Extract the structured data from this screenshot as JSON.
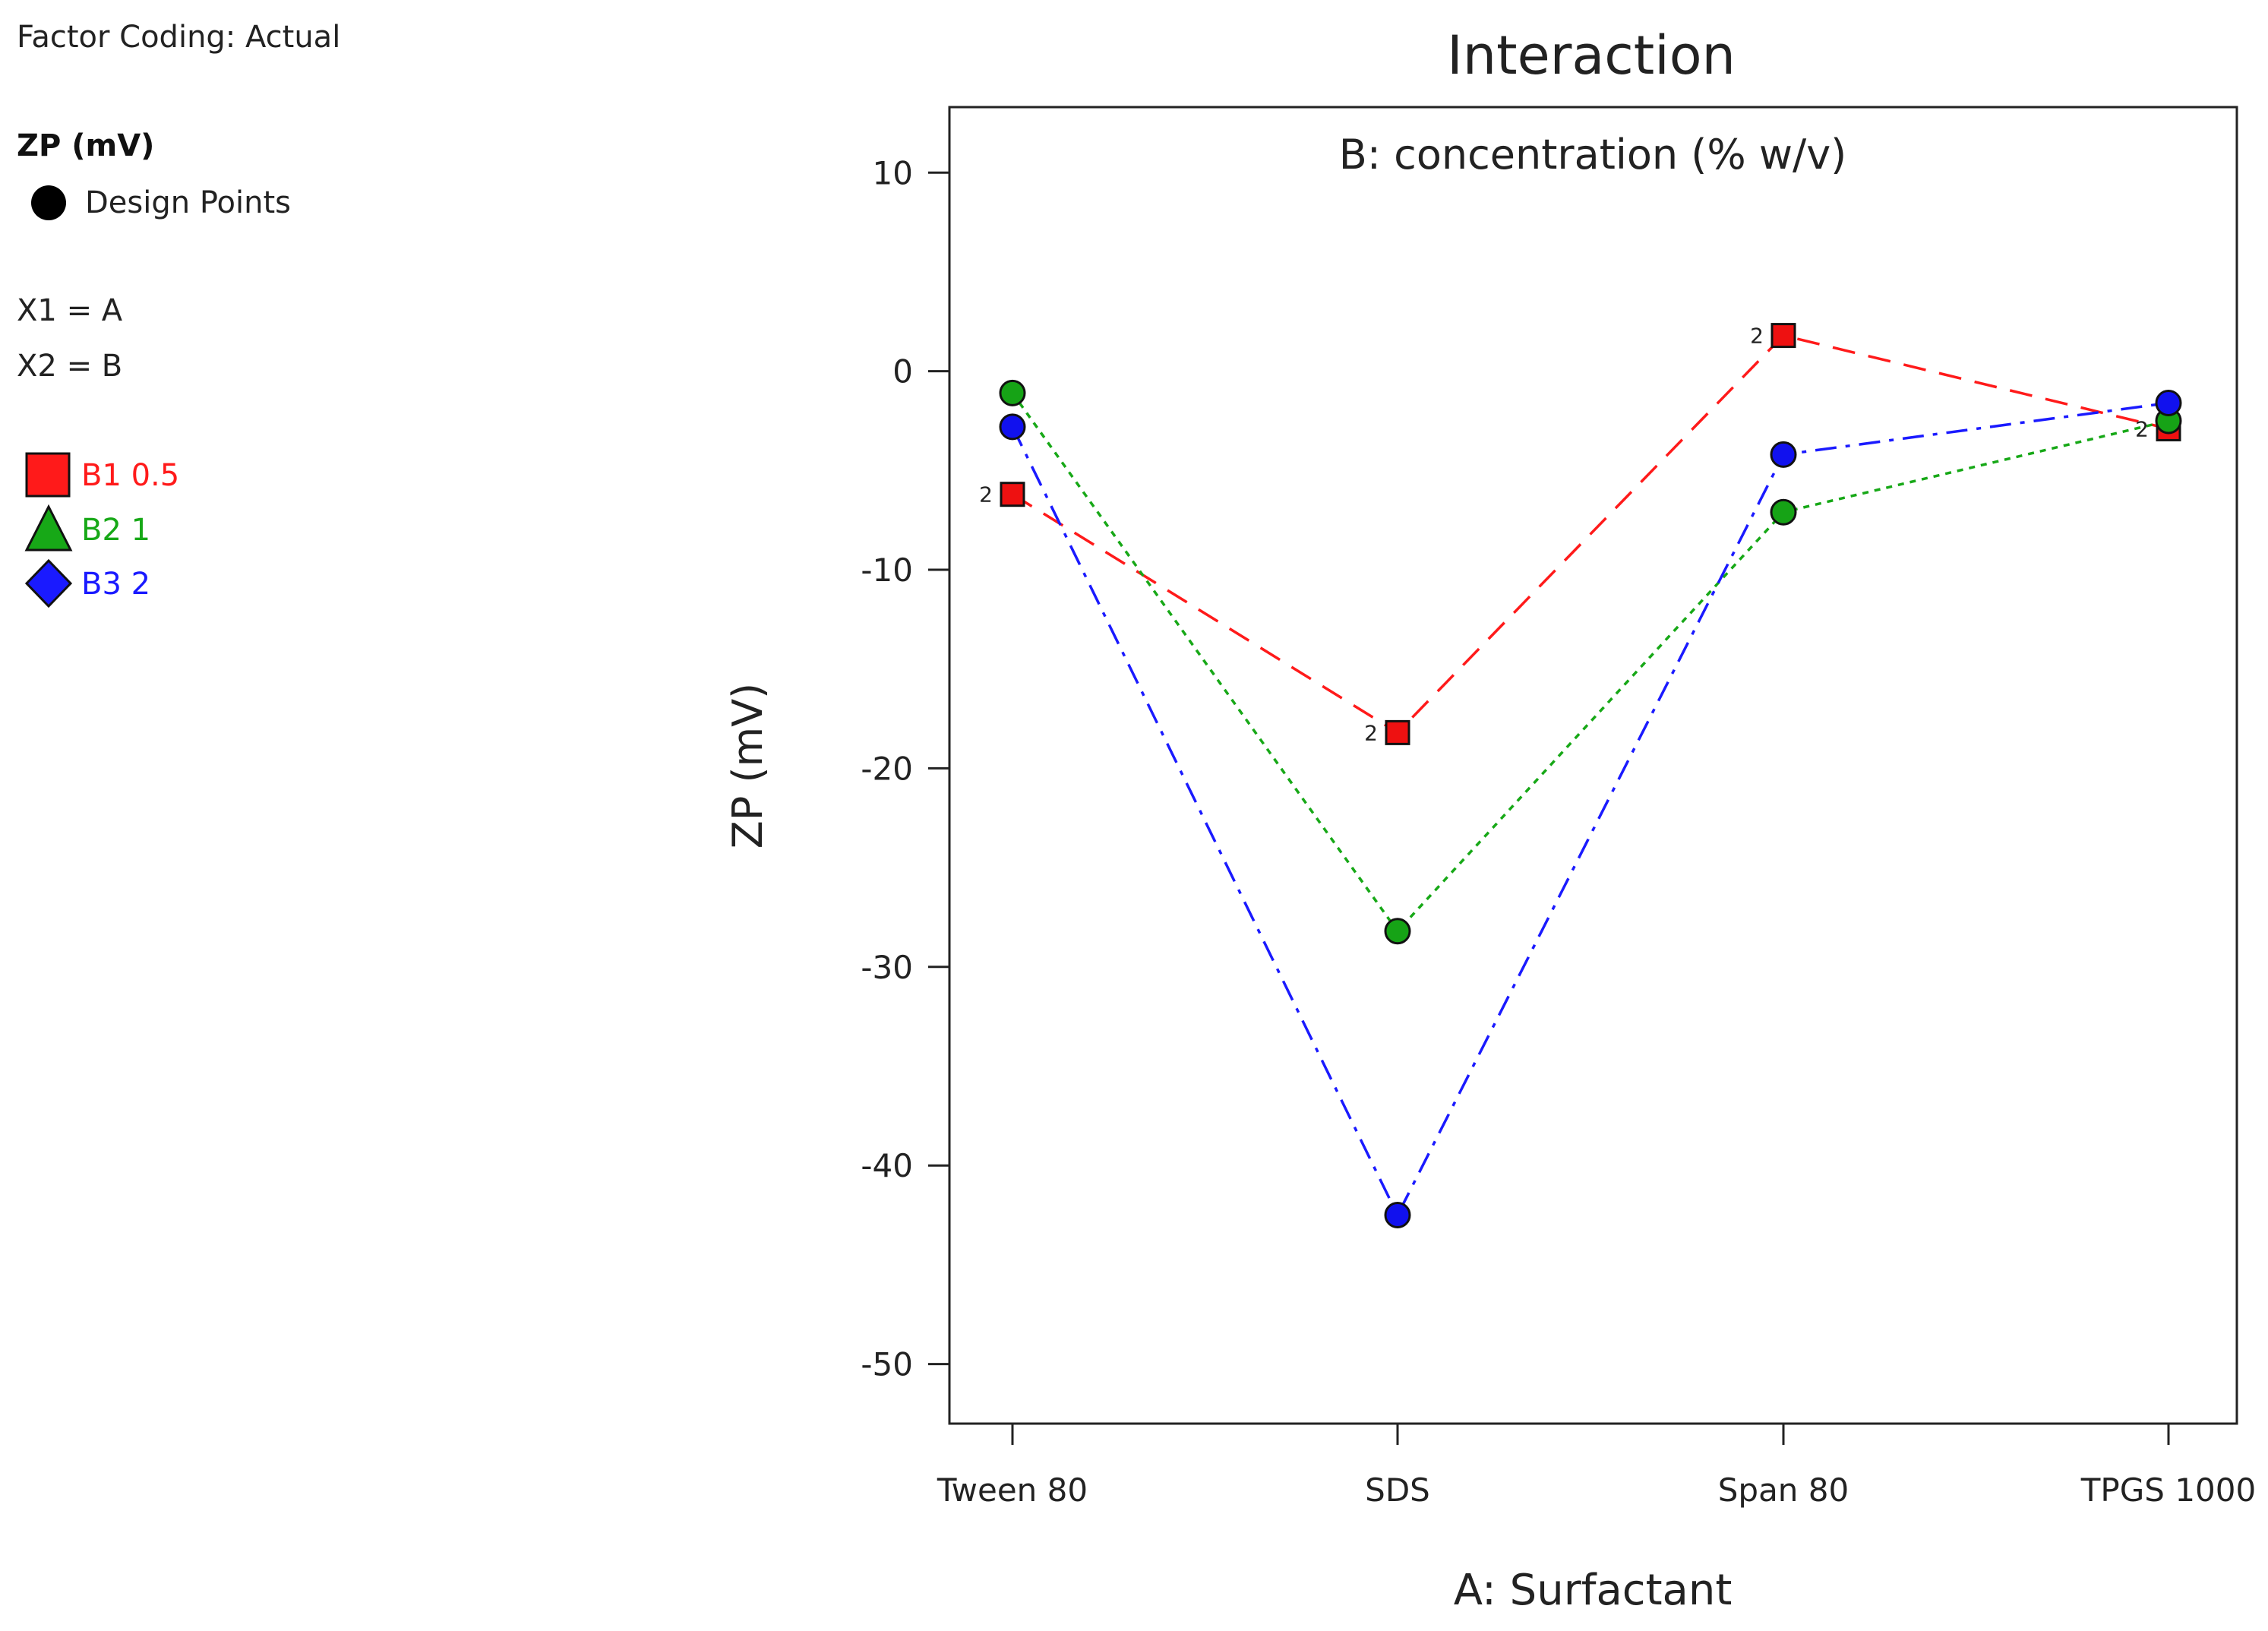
{
  "legend": {
    "factor_coding": "Factor Coding: Actual",
    "response_name": "ZP (mV)",
    "design_points_label": "Design Points",
    "x1": "X1 = A",
    "x2": "X2 = B",
    "items": [
      {
        "label": "B1 0.5",
        "color": "#ff1a1a",
        "marker": "square"
      },
      {
        "label": "B2 1",
        "color": "#17a817",
        "marker": "triangle"
      },
      {
        "label": "B3 2",
        "color": "#1a1aff",
        "marker": "diamond"
      }
    ]
  },
  "chart_data": {
    "type": "line",
    "title": "Interaction",
    "subtitle": "B: concentration (% w/v)",
    "xlabel": "A: Surfactant",
    "ylabel": "ZP (mV)",
    "categories": [
      "Tween 80",
      "SDS",
      "Span 80",
      "TPGS 1000"
    ],
    "ylim": [
      -53,
      13.3
    ],
    "yticks": [
      10,
      0,
      -10,
      -20,
      -30,
      -40,
      -50
    ],
    "series": [
      {
        "name": "B1 0.5",
        "color": "#ff1a1a",
        "dash": "dashed",
        "point_color": "#ee1111",
        "point_shape": "square",
        "values": [
          -6.2,
          -18.2,
          1.8,
          -2.9
        ],
        "replicate_labels": [
          "2",
          "2",
          "2",
          "2"
        ]
      },
      {
        "name": "B2 1",
        "color": "#17a817",
        "dash": "dotted",
        "point_color": "#16a316",
        "point_shape": "circle",
        "values": [
          -1.1,
          -28.2,
          -7.1,
          -2.5
        ],
        "replicate_labels": [
          "",
          "",
          "",
          ""
        ]
      },
      {
        "name": "B3 2",
        "color": "#1a1aff",
        "dash": "dashdot",
        "point_color": "#1111ee",
        "point_shape": "circle",
        "values": [
          -2.8,
          -42.5,
          -4.2,
          -1.6
        ],
        "replicate_labels": [
          "",
          "",
          "",
          ""
        ]
      }
    ]
  }
}
